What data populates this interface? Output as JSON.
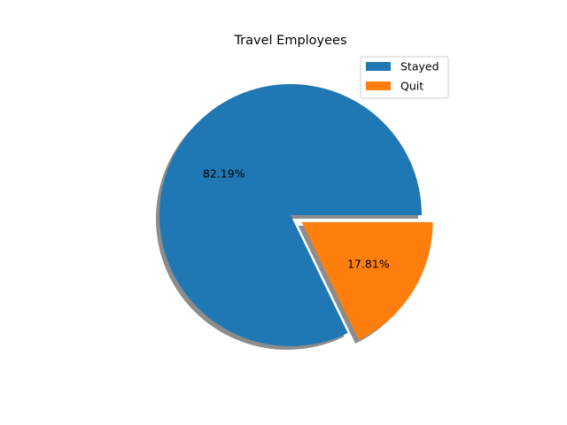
{
  "chart_data": {
    "type": "pie",
    "title": "Travel Employees",
    "slices": [
      {
        "label": "Stayed",
        "value": 82.19,
        "display": "82.19%",
        "color": "#1f77b4",
        "explode": 0
      },
      {
        "label": "Quit",
        "value": 17.81,
        "display": "17.81%",
        "color": "#ff7f0e",
        "explode": 0.1
      }
    ],
    "shadow": true,
    "start_angle_deg": 0,
    "legend_position": "upper-right"
  }
}
